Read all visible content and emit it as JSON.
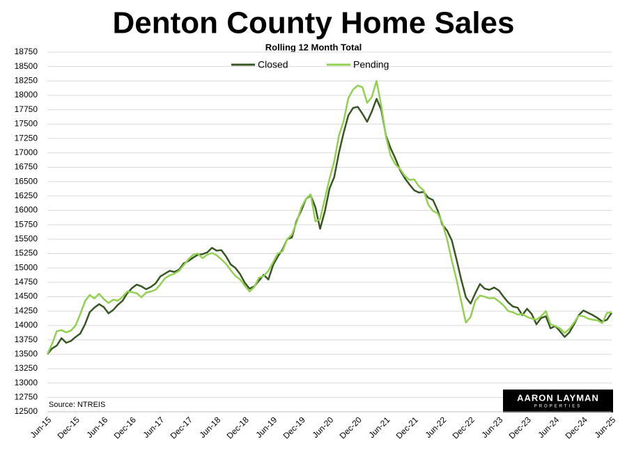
{
  "chart_data": {
    "type": "line",
    "title": "Denton County Home Sales",
    "subtitle": "Rolling 12 Month Total",
    "source": "Source: NTREIS",
    "logo": {
      "name": "AARON LAYMAN",
      "tagline": "PROPERTIES"
    },
    "categories": [
      "Jun-15",
      null,
      null,
      null,
      null,
      null,
      "Dec-15",
      null,
      null,
      null,
      null,
      null,
      "Jun-16",
      null,
      null,
      null,
      null,
      null,
      "Dec-16",
      null,
      null,
      null,
      null,
      null,
      "Jun-17",
      null,
      null,
      null,
      null,
      null,
      "Dec-17",
      null,
      null,
      null,
      null,
      null,
      "Jun-18",
      null,
      null,
      null,
      null,
      null,
      "Dec-18",
      null,
      null,
      null,
      null,
      null,
      "Jun-19",
      null,
      null,
      null,
      null,
      null,
      "Dec-19",
      null,
      null,
      null,
      null,
      null,
      "Jun-20",
      null,
      null,
      null,
      null,
      null,
      "Dec-20",
      null,
      null,
      null,
      null,
      null,
      "Jun-21",
      null,
      null,
      null,
      null,
      null,
      "Dec-21",
      null,
      null,
      null,
      null,
      null,
      "Jun-22",
      null,
      null,
      null,
      null,
      null,
      "Dec-22",
      null,
      null,
      null,
      null,
      null,
      "Jun-23",
      null,
      null,
      null,
      null,
      null,
      "Dec-23",
      null,
      null,
      null,
      null,
      null,
      "Jun-24",
      null,
      null,
      null,
      null,
      null,
      "Dec-24",
      null,
      null,
      null,
      null,
      null,
      "Jun-25"
    ],
    "series": [
      {
        "name": "Closed",
        "color": "#375623",
        "values": [
          13500,
          13600,
          13650,
          13780,
          13700,
          13730,
          13800,
          13860,
          14020,
          14230,
          14310,
          14370,
          14320,
          14210,
          14270,
          14360,
          14430,
          14560,
          14650,
          14710,
          14680,
          14630,
          14670,
          14730,
          14850,
          14900,
          14950,
          14930,
          14970,
          15080,
          15120,
          15180,
          15230,
          15240,
          15270,
          15350,
          15300,
          15310,
          15200,
          15060,
          15000,
          14890,
          14740,
          14640,
          14680,
          14780,
          14880,
          14800,
          15050,
          15200,
          15320,
          15500,
          15530,
          15820,
          16000,
          16200,
          16260,
          16050,
          15680,
          15980,
          16380,
          16580,
          17000,
          17350,
          17650,
          17780,
          17800,
          17680,
          17540,
          17720,
          17940,
          17750,
          17300,
          17080,
          16900,
          16700,
          16560,
          16450,
          16350,
          16310,
          16320,
          16220,
          16180,
          16000,
          15750,
          15650,
          15480,
          15150,
          14800,
          14490,
          14380,
          14560,
          14720,
          14640,
          14620,
          14660,
          14610,
          14500,
          14400,
          14330,
          14310,
          14180,
          14290,
          14200,
          14020,
          14130,
          14160,
          13950,
          13990,
          13900,
          13800,
          13880,
          14020,
          14180,
          14260,
          14220,
          14180,
          14130,
          14070,
          14100,
          14220
        ]
      },
      {
        "name": "Pending",
        "color": "#92d050",
        "values": [
          13500,
          13680,
          13900,
          13920,
          13880,
          13910,
          14000,
          14200,
          14420,
          14530,
          14470,
          14550,
          14460,
          14390,
          14450,
          14430,
          14500,
          14590,
          14580,
          14560,
          14490,
          14570,
          14590,
          14620,
          14710,
          14820,
          14870,
          14900,
          14950,
          15050,
          15150,
          15230,
          15250,
          15170,
          15230,
          15260,
          15220,
          15150,
          15070,
          14960,
          14860,
          14800,
          14690,
          14590,
          14670,
          14830,
          14860,
          14950,
          15100,
          15250,
          15290,
          15500,
          15580,
          15790,
          16050,
          16200,
          16280,
          15810,
          15850,
          16200,
          16550,
          16850,
          17300,
          17550,
          17950,
          18100,
          18170,
          18140,
          17870,
          17970,
          18250,
          17820,
          17280,
          16950,
          16800,
          16720,
          16600,
          16530,
          16540,
          16420,
          16350,
          16100,
          15990,
          15950,
          15780,
          15500,
          15130,
          14800,
          14420,
          14050,
          14150,
          14430,
          14520,
          14500,
          14470,
          14480,
          14420,
          14350,
          14250,
          14230,
          14190,
          14200,
          14150,
          14120,
          14100,
          14160,
          14250,
          14020,
          13990,
          13950,
          13870,
          13940,
          14050,
          14170,
          14160,
          14120,
          14100,
          14090,
          14040,
          14220,
          14230
        ]
      }
    ],
    "ylim": [
      12500,
      18750
    ],
    "yticks": [
      12500,
      12750,
      13000,
      13250,
      13500,
      13750,
      14000,
      14250,
      14500,
      14750,
      15000,
      15250,
      15500,
      15750,
      16000,
      16250,
      16500,
      16750,
      17000,
      17250,
      17500,
      17750,
      18000,
      18250,
      18500,
      18750
    ],
    "grid": true,
    "legend": "top"
  }
}
